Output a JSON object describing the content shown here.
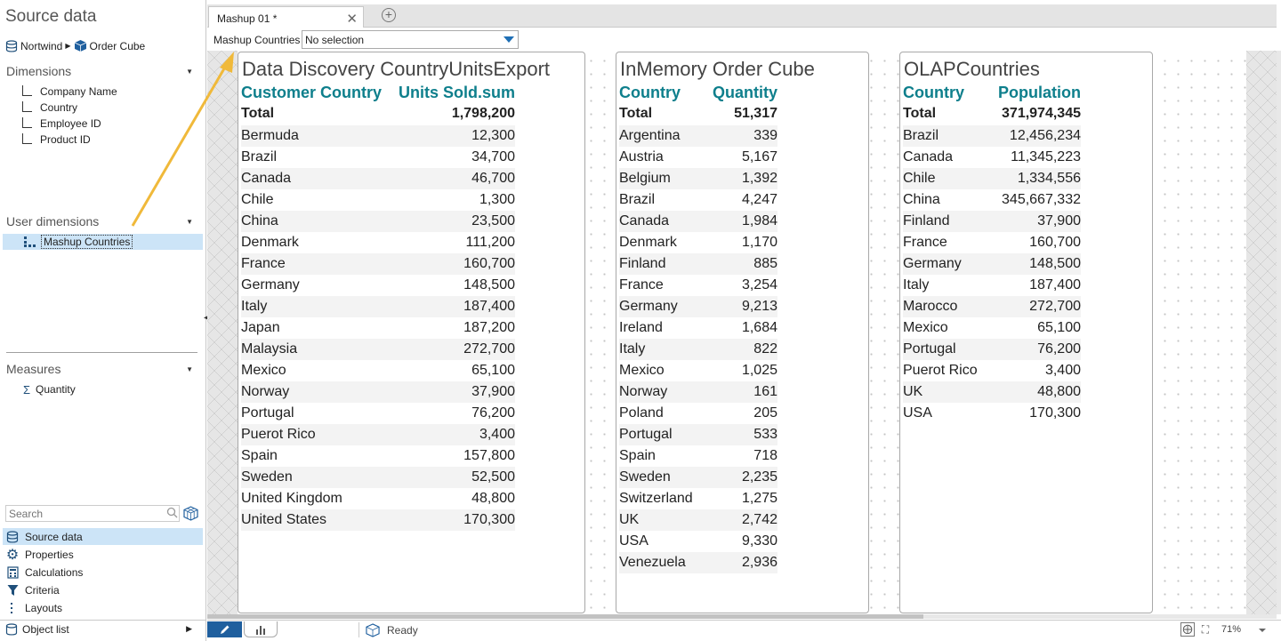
{
  "left_panel": {
    "title": "Source data",
    "source_path": {
      "database": "Nortwind",
      "cube": "Order Cube"
    },
    "dimensions": {
      "title": "Dimensions",
      "items": [
        "Company Name",
        "Country",
        "Employee ID",
        "Product ID"
      ]
    },
    "user_dimensions": {
      "title": "User dimensions",
      "items": [
        "Mashup Countries"
      ]
    },
    "measures": {
      "title": "Measures",
      "items": [
        "Quantity"
      ]
    },
    "search": {
      "placeholder": "Search"
    },
    "nav": [
      "Source data",
      "Properties",
      "Calculations",
      "Criteria",
      "Layouts"
    ],
    "object_list": "Object list"
  },
  "tabs": [
    {
      "label": "Mashup 01 *"
    }
  ],
  "toolbar": {
    "label": "Mashup Countries",
    "select_value": "No selection"
  },
  "cards": [
    {
      "title": "Data Discovery CountryUnitsExport",
      "headers": [
        "Customer Country",
        "Units Sold.sum"
      ],
      "total": [
        "Total",
        "1,798,200"
      ],
      "rows": [
        [
          "Bermuda",
          "12,300"
        ],
        [
          "Brazil",
          "34,700"
        ],
        [
          "Canada",
          "46,700"
        ],
        [
          "Chile",
          "1,300"
        ],
        [
          "China",
          "23,500"
        ],
        [
          "Denmark",
          "111,200"
        ],
        [
          "France",
          "160,700"
        ],
        [
          "Germany",
          "148,500"
        ],
        [
          "Italy",
          "187,400"
        ],
        [
          "Japan",
          "187,200"
        ],
        [
          "Malaysia",
          "272,700"
        ],
        [
          "Mexico",
          "65,100"
        ],
        [
          "Norway",
          "37,900"
        ],
        [
          "Portugal",
          "76,200"
        ],
        [
          "Puerot Rico",
          "3,400"
        ],
        [
          "Spain",
          "157,800"
        ],
        [
          "Sweden",
          "52,500"
        ],
        [
          "United Kingdom",
          "48,800"
        ],
        [
          "United States",
          "170,300"
        ]
      ]
    },
    {
      "title": "InMemory Order Cube",
      "headers": [
        "Country",
        "Quantity"
      ],
      "total": [
        "Total",
        "51,317"
      ],
      "rows": [
        [
          "Argentina",
          "339"
        ],
        [
          "Austria",
          "5,167"
        ],
        [
          "Belgium",
          "1,392"
        ],
        [
          "Brazil",
          "4,247"
        ],
        [
          "Canada",
          "1,984"
        ],
        [
          "Denmark",
          "1,170"
        ],
        [
          "Finland",
          "885"
        ],
        [
          "France",
          "3,254"
        ],
        [
          "Germany",
          "9,213"
        ],
        [
          "Ireland",
          "1,684"
        ],
        [
          "Italy",
          "822"
        ],
        [
          "Mexico",
          "1,025"
        ],
        [
          "Norway",
          "161"
        ],
        [
          "Poland",
          "205"
        ],
        [
          "Portugal",
          "533"
        ],
        [
          "Spain",
          "718"
        ],
        [
          "Sweden",
          "2,235"
        ],
        [
          "Switzerland",
          "1,275"
        ],
        [
          "UK",
          "2,742"
        ],
        [
          "USA",
          "9,330"
        ],
        [
          "Venezuela",
          "2,936"
        ]
      ]
    },
    {
      "title": "OLAPCountries",
      "headers": [
        "Country",
        "Population"
      ],
      "total": [
        "Total",
        "371,974,345"
      ],
      "rows": [
        [
          "Brazil",
          "12,456,234"
        ],
        [
          "Canada",
          "11,345,223"
        ],
        [
          "Chile",
          "1,334,556"
        ],
        [
          "China",
          "345,667,332"
        ],
        [
          "Finland",
          "37,900"
        ],
        [
          "France",
          "160,700"
        ],
        [
          "Germany",
          "148,500"
        ],
        [
          "Italy",
          "187,400"
        ],
        [
          "Marocco",
          "272,700"
        ],
        [
          "Mexico",
          "65,100"
        ],
        [
          "Portugal",
          "76,200"
        ],
        [
          "Puerot Rico",
          "3,400"
        ],
        [
          "UK",
          "48,800"
        ],
        [
          "USA",
          "170,300"
        ]
      ]
    }
  ],
  "status": {
    "text": "Ready",
    "zoom": "71%"
  },
  "colors": {
    "header_teal": "#0e7f8c",
    "selection": "#cce4f7",
    "edit_button": "#1f5f9e",
    "annotation_arrow": "#f0b93a"
  }
}
